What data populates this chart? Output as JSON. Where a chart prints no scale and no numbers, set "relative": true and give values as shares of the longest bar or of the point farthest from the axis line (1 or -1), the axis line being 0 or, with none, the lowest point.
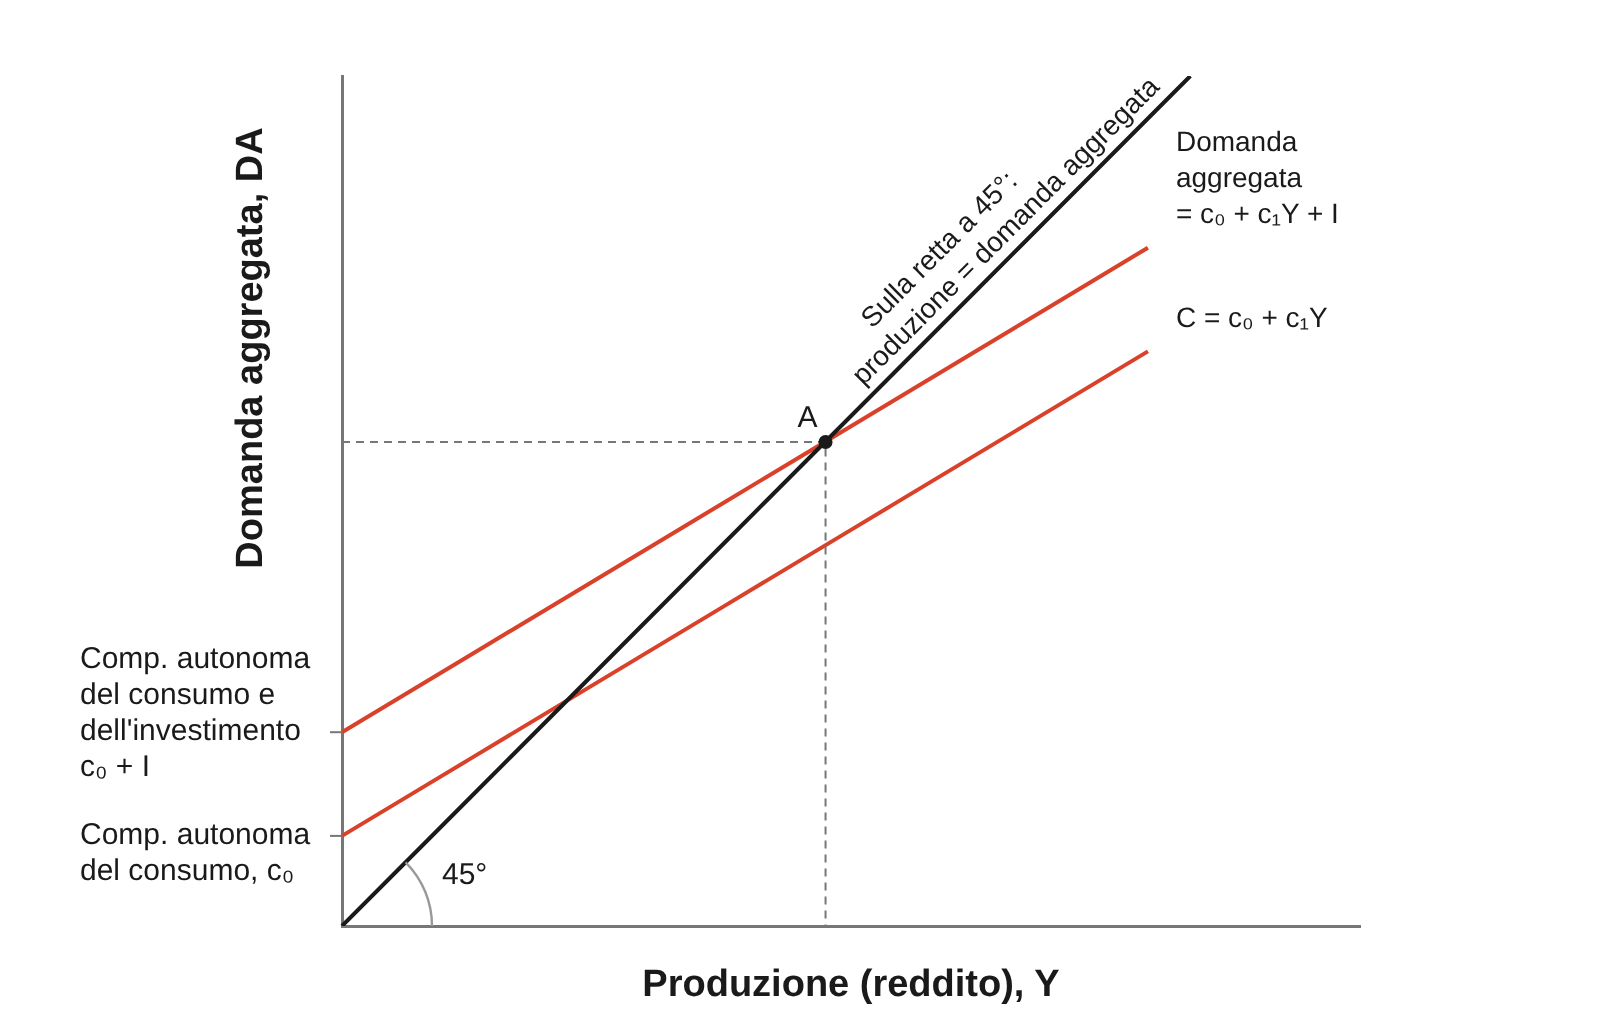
{
  "chart_data": {
    "type": "line",
    "relative": true,
    "xlabel": "Produzione (reddito), Y",
    "ylabel": "Domanda aggregata, DA",
    "categories": [
      null,
      null,
      null,
      null,
      null,
      null,
      null,
      null,
      null,
      null,
      null,
      null,
      null,
      null,
      null,
      null,
      null,
      null,
      null,
      null,
      null,
      null,
      null,
      null,
      null
    ],
    "series": [
      {
        "name": "Sulla retta a 45°: produzione = domanda aggregata",
        "color": "#1a1a1a",
        "values": [
          0,
          0.05,
          0.1,
          0.15,
          0.2,
          0.25,
          0.3,
          0.35,
          0.4,
          0.45,
          0.5,
          0.55,
          0.6,
          0.65,
          0.7,
          0.75,
          0.8,
          0.85,
          0.9,
          0.95,
          1.0,
          null,
          null,
          null,
          null
        ]
      },
      {
        "name": "Domanda aggregata = c₀ + c₁Y + I",
        "color": "#d9412a",
        "values": [
          0.228,
          0.258,
          0.288,
          0.318,
          0.348,
          0.378,
          0.408,
          0.438,
          0.468,
          0.498,
          0.528,
          0.558,
          0.588,
          0.618,
          0.648,
          0.678,
          0.708,
          0.738,
          0.768,
          0.798,
          null,
          null,
          null,
          null,
          null
        ]
      },
      {
        "name": "C = c₀ + c₁Y",
        "color": "#d9412a",
        "values": [
          0.106,
          0.136,
          0.166,
          0.196,
          0.226,
          0.256,
          0.286,
          0.316,
          0.346,
          0.376,
          0.406,
          0.436,
          0.466,
          0.496,
          0.526,
          0.556,
          0.586,
          0.616,
          0.646,
          0.676,
          null,
          null,
          null,
          null,
          null
        ]
      }
    ],
    "annotations": [
      "A",
      "Comp. autonoma del consumo e dell'investimento c₀ + I",
      "Comp. autonoma del consumo, c₀",
      "45°"
    ]
  }
}
